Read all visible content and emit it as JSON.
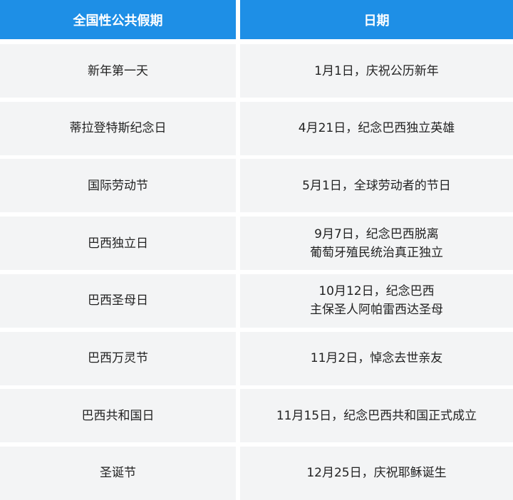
{
  "table": {
    "header": [
      "全国性公共假期",
      "日期"
    ],
    "rows": [
      [
        "新年第一天",
        [
          "1月1日，庆祝公历新年"
        ]
      ],
      [
        "蒂拉登特斯纪念日",
        [
          "4月21日，纪念巴西独立英雄"
        ]
      ],
      [
        "国际劳动节",
        [
          "5月1日，全球劳动者的节日"
        ]
      ],
      [
        "巴西独立日",
        [
          "9月7日，纪念巴西脱离",
          "葡萄牙殖民统治真正独立"
        ]
      ],
      [
        "巴西圣母日",
        [
          "10月12日，纪念巴西",
          "主保圣人阿帕雷西达圣母"
        ]
      ],
      [
        "巴西万灵节",
        [
          "11月2日，悼念去世亲友"
        ]
      ],
      [
        "巴西共和国日",
        [
          "11月15日，纪念巴西共和国正式成立"
        ]
      ],
      [
        "圣诞节",
        [
          "12月25日，庆祝耶稣诞生"
        ]
      ]
    ]
  }
}
